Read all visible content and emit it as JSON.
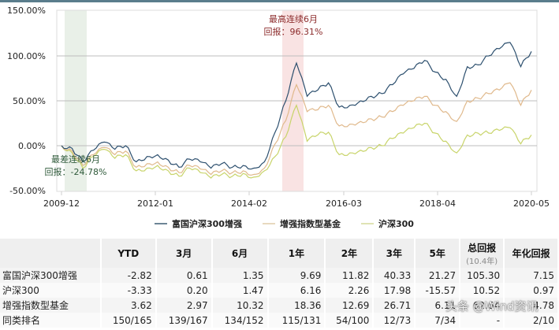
{
  "chart_data": {
    "type": "line",
    "title": "",
    "xlabel": "",
    "ylabel": "",
    "ylim": [
      -50,
      150
    ],
    "yticks": [
      "150.00%",
      "100.00%",
      "50.00%",
      "0.00%",
      "-50.00%"
    ],
    "xticks": [
      "2009-12",
      "2012-01",
      "2014-02",
      "2016-03",
      "2018-04",
      "2020-05"
    ],
    "grid": true,
    "legend_position": "bottom",
    "x": [
      "2009-12",
      "2010-03",
      "2010-06",
      "2010-09",
      "2010-12",
      "2011-03",
      "2011-06",
      "2011-09",
      "2011-12",
      "2012-03",
      "2012-06",
      "2012-09",
      "2012-12",
      "2013-03",
      "2013-06",
      "2013-09",
      "2013-12",
      "2014-03",
      "2014-06",
      "2014-09",
      "2014-12",
      "2015-03",
      "2015-06",
      "2015-08",
      "2015-10",
      "2015-12",
      "2016-03",
      "2016-06",
      "2016-09",
      "2016-12",
      "2017-03",
      "2017-06",
      "2017-09",
      "2017-12",
      "2018-03",
      "2018-06",
      "2018-09",
      "2018-12",
      "2019-03",
      "2019-06",
      "2019-09",
      "2019-12",
      "2020-02",
      "2020-03",
      "2020-05"
    ],
    "series": [
      {
        "name": "富国沪深300增强",
        "color": "#2c4f6e",
        "values": [
          0,
          -3,
          -18,
          -5,
          4,
          -4,
          0,
          -18,
          -12,
          -10,
          -16,
          -24,
          -15,
          -18,
          -25,
          -20,
          -24,
          -22,
          -25,
          -18,
          15,
          50,
          92,
          55,
          62,
          70,
          43,
          45,
          50,
          55,
          58,
          68,
          80,
          86,
          95,
          82,
          74,
          55,
          88,
          90,
          100,
          108,
          115,
          88,
          105
        ]
      },
      {
        "name": "增强指数型基金",
        "color": "#e0b98c",
        "values": [
          0,
          -6,
          -22,
          -10,
          -2,
          -10,
          -6,
          -24,
          -20,
          -18,
          -24,
          -30,
          -22,
          -26,
          -32,
          -28,
          -30,
          -28,
          -32,
          -25,
          2,
          28,
          68,
          38,
          40,
          45,
          22,
          24,
          27,
          30,
          32,
          38,
          45,
          50,
          55,
          45,
          38,
          27,
          50,
          53,
          58,
          62,
          70,
          45,
          62
        ]
      },
      {
        "name": "沪深300",
        "color": "#c8d46a",
        "values": [
          0,
          -8,
          -25,
          -12,
          -4,
          -14,
          -10,
          -28,
          -25,
          -22,
          -28,
          -34,
          -25,
          -30,
          -36,
          -32,
          -34,
          -31,
          -35,
          -28,
          -12,
          10,
          45,
          5,
          12,
          15,
          -10,
          -8,
          -5,
          -2,
          0,
          8,
          14,
          20,
          25,
          14,
          5,
          -8,
          12,
          14,
          14,
          17,
          20,
          2,
          12
        ]
      }
    ],
    "annotations": [
      {
        "text": "最高连续6月 回报：96.31%",
        "band": [
          "2014-11",
          "2015-05"
        ],
        "color": "#f7dede"
      },
      {
        "text": "最差连续6月 回报：-24.78%",
        "band": [
          "2010-01",
          "2010-07"
        ],
        "color": "#e8efe6"
      }
    ]
  },
  "chart": {
    "best_label_1": "最高连续6月",
    "best_label_2": "回报：96.31%",
    "worst_label_1": "最差连续6月",
    "worst_label_2": "回报：-24.78%",
    "yticks": [
      "150.00%",
      "100.00%",
      "50.00%",
      "0.00%",
      "-50.00%"
    ],
    "xticks": [
      "2009-12",
      "2012-01",
      "2014-02",
      "2016-03",
      "2018-04",
      "2020-05"
    ]
  },
  "legend": {
    "items": [
      {
        "label": "富国沪深300增强",
        "color": "#6d8596"
      },
      {
        "label": "增强指数型基金",
        "color": "#e8d9bf"
      },
      {
        "label": "沪深300",
        "color": "#dfe3b4"
      }
    ]
  },
  "table": {
    "headers": [
      "",
      "YTD",
      "3月",
      "6月",
      "1年",
      "2年",
      "3年",
      "5年",
      "总回报",
      "年化回报"
    ],
    "total_sub": "(10.4年)",
    "rows": [
      {
        "name": "富国沪深300增强",
        "values": [
          "-2.82",
          "0.61",
          "1.35",
          "9.69",
          "11.82",
          "40.33",
          "21.27",
          "105.30",
          "7.15"
        ]
      },
      {
        "name": "沪深300",
        "values": [
          "-3.33",
          "0.20",
          "1.47",
          "6.16",
          "2.26",
          "17.98",
          "-15.57",
          "10.52",
          "0.97"
        ]
      },
      {
        "name": "增强指数型基金",
        "values": [
          "3.62",
          "2.97",
          "10.32",
          "18.36",
          "12.69",
          "26.71",
          "6.11",
          "62.64",
          "4.78"
        ]
      },
      {
        "name": "同类排名",
        "values": [
          "150/165",
          "139/167",
          "134/152",
          "115/131",
          "54/100",
          "12/73",
          "7/34",
          "-",
          "2/10"
        ]
      }
    ]
  },
  "watermark": "头条 @Wind资讯"
}
